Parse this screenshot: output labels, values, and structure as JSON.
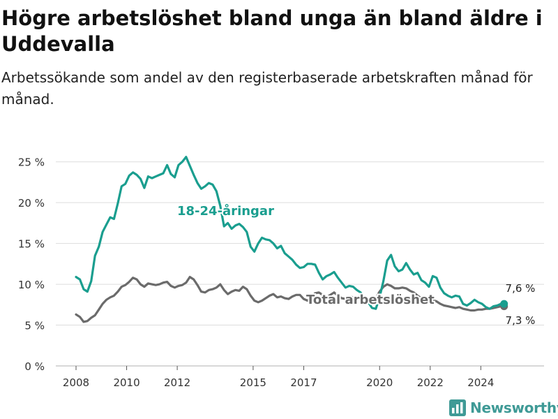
{
  "header": {
    "title": "Högre arbetslöshet bland unga än bland äldre i Uddevalla",
    "subtitle": "Arbetssökande som andel av den registerbaserade arbetskraften månad för månad."
  },
  "brand": {
    "name": "Newsworthy",
    "icon": "bar-chart-logo-icon",
    "color": "#3f9a96"
  },
  "chart_data": {
    "type": "line",
    "title": "Högre arbetslöshet bland unga än bland äldre i Uddevalla",
    "subtitle": "Arbetssökande som andel av den registerbaserade arbetskraften månad för månad.",
    "xlabel": "",
    "ylabel": "",
    "x_ticks": [
      "2008",
      "2010",
      "2012",
      "2015",
      "2017",
      "2020",
      "2022",
      "2024"
    ],
    "x_tick_values": [
      2008,
      2010,
      2012,
      2015,
      2017,
      2020,
      2022,
      2024
    ],
    "xlim": [
      2007.2,
      2026.5
    ],
    "y_ticks": [
      "0 %",
      "5 %",
      "10 %",
      "15 %",
      "20 %",
      "25 %"
    ],
    "y_tick_values": [
      0,
      5,
      10,
      15,
      20,
      25
    ],
    "ylim": [
      0,
      26
    ],
    "grid": "horizontal",
    "series": [
      {
        "name": "18-24-åringar",
        "color": "#1a9e8f",
        "end_label": "7,6 %",
        "points": [
          [
            2008.0,
            10.9
          ],
          [
            2008.15,
            10.6
          ],
          [
            2008.3,
            9.4
          ],
          [
            2008.45,
            9.1
          ],
          [
            2008.6,
            10.4
          ],
          [
            2008.75,
            13.5
          ],
          [
            2008.9,
            14.6
          ],
          [
            2009.05,
            16.4
          ],
          [
            2009.2,
            17.3
          ],
          [
            2009.35,
            18.2
          ],
          [
            2009.5,
            18.0
          ],
          [
            2009.65,
            19.9
          ],
          [
            2009.8,
            22.0
          ],
          [
            2009.95,
            22.3
          ],
          [
            2010.1,
            23.3
          ],
          [
            2010.25,
            23.7
          ],
          [
            2010.4,
            23.4
          ],
          [
            2010.55,
            22.9
          ],
          [
            2010.7,
            21.8
          ],
          [
            2010.85,
            23.2
          ],
          [
            2011.0,
            23.0
          ],
          [
            2011.15,
            23.2
          ],
          [
            2011.3,
            23.4
          ],
          [
            2011.45,
            23.6
          ],
          [
            2011.6,
            24.6
          ],
          [
            2011.75,
            23.5
          ],
          [
            2011.9,
            23.1
          ],
          [
            2012.05,
            24.6
          ],
          [
            2012.2,
            25.0
          ],
          [
            2012.35,
            25.6
          ],
          [
            2012.5,
            24.5
          ],
          [
            2012.65,
            23.4
          ],
          [
            2012.8,
            22.4
          ],
          [
            2012.95,
            21.7
          ],
          [
            2013.1,
            22.0
          ],
          [
            2013.25,
            22.4
          ],
          [
            2013.4,
            22.2
          ],
          [
            2013.55,
            21.4
          ],
          [
            2013.7,
            19.6
          ],
          [
            2013.85,
            17.1
          ],
          [
            2014.0,
            17.5
          ],
          [
            2014.15,
            16.8
          ],
          [
            2014.3,
            17.2
          ],
          [
            2014.45,
            17.4
          ],
          [
            2014.6,
            17.0
          ],
          [
            2014.75,
            16.4
          ],
          [
            2014.9,
            14.6
          ],
          [
            2015.05,
            14.0
          ],
          [
            2015.2,
            15.0
          ],
          [
            2015.35,
            15.7
          ],
          [
            2015.5,
            15.5
          ],
          [
            2015.65,
            15.4
          ],
          [
            2015.8,
            15.0
          ],
          [
            2015.95,
            14.4
          ],
          [
            2016.1,
            14.7
          ],
          [
            2016.25,
            13.8
          ],
          [
            2016.4,
            13.4
          ],
          [
            2016.55,
            13.0
          ],
          [
            2016.7,
            12.4
          ],
          [
            2016.85,
            12.0
          ],
          [
            2017.0,
            12.1
          ],
          [
            2017.15,
            12.5
          ],
          [
            2017.3,
            12.5
          ],
          [
            2017.45,
            12.4
          ],
          [
            2017.6,
            11.4
          ],
          [
            2017.75,
            10.6
          ],
          [
            2017.9,
            11.0
          ],
          [
            2018.05,
            11.2
          ],
          [
            2018.2,
            11.5
          ],
          [
            2018.35,
            10.8
          ],
          [
            2018.5,
            10.2
          ],
          [
            2018.65,
            9.6
          ],
          [
            2018.8,
            9.8
          ],
          [
            2018.95,
            9.7
          ],
          [
            2019.1,
            9.3
          ],
          [
            2019.25,
            9.0
          ],
          [
            2019.4,
            8.2
          ],
          [
            2019.55,
            7.8
          ],
          [
            2019.7,
            7.1
          ],
          [
            2019.85,
            7.0
          ],
          [
            2020.0,
            8.4
          ],
          [
            2020.15,
            10.4
          ],
          [
            2020.3,
            12.9
          ],
          [
            2020.45,
            13.6
          ],
          [
            2020.6,
            12.2
          ],
          [
            2020.75,
            11.6
          ],
          [
            2020.9,
            11.8
          ],
          [
            2021.05,
            12.6
          ],
          [
            2021.2,
            11.8
          ],
          [
            2021.35,
            11.2
          ],
          [
            2021.5,
            11.4
          ],
          [
            2021.65,
            10.5
          ],
          [
            2021.8,
            10.2
          ],
          [
            2021.95,
            9.7
          ],
          [
            2022.1,
            11.0
          ],
          [
            2022.25,
            10.8
          ],
          [
            2022.4,
            9.6
          ],
          [
            2022.55,
            8.9
          ],
          [
            2022.7,
            8.6
          ],
          [
            2022.85,
            8.4
          ],
          [
            2023.0,
            8.6
          ],
          [
            2023.15,
            8.5
          ],
          [
            2023.3,
            7.6
          ],
          [
            2023.45,
            7.4
          ],
          [
            2023.6,
            7.7
          ],
          [
            2023.75,
            8.1
          ],
          [
            2023.9,
            7.8
          ],
          [
            2024.05,
            7.6
          ],
          [
            2024.2,
            7.2
          ],
          [
            2024.35,
            7.0
          ],
          [
            2024.5,
            7.3
          ],
          [
            2024.65,
            7.4
          ],
          [
            2024.8,
            7.6
          ],
          [
            2024.92,
            7.6
          ]
        ]
      },
      {
        "name": "Total arbetslöshet",
        "color": "#6b6b6b",
        "end_label": "7,3 %",
        "points": [
          [
            2008.0,
            6.3
          ],
          [
            2008.15,
            6.0
          ],
          [
            2008.3,
            5.4
          ],
          [
            2008.45,
            5.5
          ],
          [
            2008.6,
            5.9
          ],
          [
            2008.75,
            6.2
          ],
          [
            2008.9,
            6.9
          ],
          [
            2009.05,
            7.6
          ],
          [
            2009.2,
            8.1
          ],
          [
            2009.35,
            8.4
          ],
          [
            2009.5,
            8.6
          ],
          [
            2009.65,
            9.1
          ],
          [
            2009.8,
            9.7
          ],
          [
            2009.95,
            9.9
          ],
          [
            2010.1,
            10.3
          ],
          [
            2010.25,
            10.8
          ],
          [
            2010.4,
            10.6
          ],
          [
            2010.55,
            10.0
          ],
          [
            2010.7,
            9.7
          ],
          [
            2010.85,
            10.1
          ],
          [
            2011.0,
            10.0
          ],
          [
            2011.15,
            9.9
          ],
          [
            2011.3,
            10.0
          ],
          [
            2011.45,
            10.2
          ],
          [
            2011.6,
            10.3
          ],
          [
            2011.75,
            9.8
          ],
          [
            2011.9,
            9.6
          ],
          [
            2012.05,
            9.8
          ],
          [
            2012.2,
            9.9
          ],
          [
            2012.35,
            10.2
          ],
          [
            2012.5,
            10.9
          ],
          [
            2012.65,
            10.6
          ],
          [
            2012.8,
            9.9
          ],
          [
            2012.95,
            9.1
          ],
          [
            2013.1,
            9.0
          ],
          [
            2013.25,
            9.3
          ],
          [
            2013.4,
            9.4
          ],
          [
            2013.55,
            9.6
          ],
          [
            2013.7,
            10.0
          ],
          [
            2013.85,
            9.3
          ],
          [
            2014.0,
            8.8
          ],
          [
            2014.15,
            9.1
          ],
          [
            2014.3,
            9.3
          ],
          [
            2014.45,
            9.2
          ],
          [
            2014.6,
            9.7
          ],
          [
            2014.75,
            9.4
          ],
          [
            2014.9,
            8.6
          ],
          [
            2015.05,
            8.0
          ],
          [
            2015.2,
            7.8
          ],
          [
            2015.35,
            8.0
          ],
          [
            2015.5,
            8.3
          ],
          [
            2015.65,
            8.6
          ],
          [
            2015.8,
            8.8
          ],
          [
            2015.95,
            8.4
          ],
          [
            2016.1,
            8.5
          ],
          [
            2016.25,
            8.3
          ],
          [
            2016.4,
            8.2
          ],
          [
            2016.55,
            8.5
          ],
          [
            2016.7,
            8.7
          ],
          [
            2016.85,
            8.7
          ],
          [
            2017.0,
            8.2
          ],
          [
            2017.15,
            8.0
          ],
          [
            2017.3,
            8.4
          ],
          [
            2017.45,
            8.9
          ],
          [
            2017.6,
            9.0
          ],
          [
            2017.75,
            8.7
          ],
          [
            2017.9,
            8.4
          ],
          [
            2018.05,
            8.7
          ],
          [
            2018.2,
            9.0
          ],
          [
            2018.35,
            8.6
          ],
          [
            2018.5,
            8.3
          ],
          [
            2018.65,
            8.2
          ],
          [
            2018.8,
            8.5
          ],
          [
            2018.95,
            8.4
          ],
          [
            2019.1,
            8.3
          ],
          [
            2019.25,
            8.5
          ],
          [
            2019.4,
            8.4
          ],
          [
            2019.55,
            8.2
          ],
          [
            2019.7,
            8.1
          ],
          [
            2019.85,
            8.3
          ],
          [
            2020.0,
            9.1
          ],
          [
            2020.15,
            9.7
          ],
          [
            2020.3,
            10.0
          ],
          [
            2020.45,
            9.8
          ],
          [
            2020.6,
            9.5
          ],
          [
            2020.75,
            9.5
          ],
          [
            2020.9,
            9.6
          ],
          [
            2021.05,
            9.5
          ],
          [
            2021.2,
            9.2
          ],
          [
            2021.35,
            9.0
          ],
          [
            2021.5,
            8.6
          ],
          [
            2021.65,
            8.3
          ],
          [
            2021.8,
            8.1
          ],
          [
            2021.95,
            8.3
          ],
          [
            2022.1,
            8.1
          ],
          [
            2022.25,
            7.9
          ],
          [
            2022.4,
            7.6
          ],
          [
            2022.55,
            7.4
          ],
          [
            2022.7,
            7.3
          ],
          [
            2022.85,
            7.2
          ],
          [
            2023.0,
            7.1
          ],
          [
            2023.15,
            7.2
          ],
          [
            2023.3,
            7.0
          ],
          [
            2023.45,
            6.9
          ],
          [
            2023.6,
            6.8
          ],
          [
            2023.75,
            6.8
          ],
          [
            2023.9,
            6.9
          ],
          [
            2024.05,
            6.9
          ],
          [
            2024.2,
            7.0
          ],
          [
            2024.35,
            7.0
          ],
          [
            2024.5,
            7.1
          ],
          [
            2024.65,
            7.2
          ],
          [
            2024.8,
            7.3
          ],
          [
            2024.92,
            7.3
          ]
        ]
      }
    ],
    "annotations": [
      {
        "text": "18-24-åringar",
        "series": 0
      },
      {
        "text": "Total arbetslöshet",
        "series": 1
      }
    ]
  }
}
